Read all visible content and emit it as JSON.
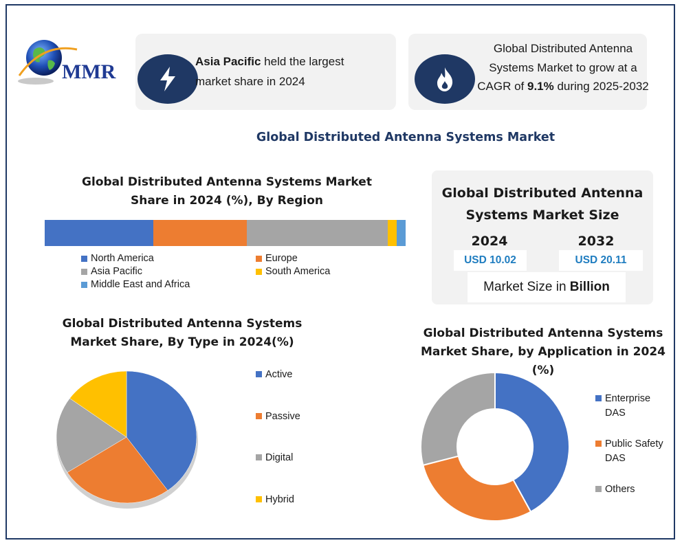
{
  "logo": {
    "text": "MMR"
  },
  "fact1": {
    "bold": "Asia Pacific",
    "rest_line1": " held the largest",
    "line2": "market share in 2024"
  },
  "fact2": {
    "line1": "Global Distributed Antenna",
    "line2": "Systems Market to grow at a",
    "line3_a": "CAGR of ",
    "line3_bold": "9.1%",
    "line3_b": " during 2025-2032"
  },
  "main_title": "Global Distributed Antenna Systems Market",
  "market_size": {
    "title_line1": "Global Distributed Antenna",
    "title_line2": "Systems Market Size",
    "year_a": "2024",
    "value_a": "USD 10.02",
    "year_b": "2032",
    "value_b": "USD 20.11",
    "unit_a": "Market Size in ",
    "unit_bold": "Billion"
  },
  "colors": {
    "blue": "#4472c4",
    "orange": "#ed7d31",
    "gray": "#a5a5a5",
    "yellow": "#ffc000",
    "lightblue": "#5b9bd5",
    "navy": "#1f3864"
  },
  "chart_data": [
    {
      "type": "bar",
      "title_line1": "Global Distributed Antenna Systems Market",
      "title_line2": "Share in 2024 (%), By Region",
      "stacked": true,
      "orientation": "horizontal",
      "series": [
        {
          "name": "North America",
          "value": 30,
          "color": "#4472c4"
        },
        {
          "name": "Europe",
          "value": 26,
          "color": "#ed7d31"
        },
        {
          "name": "Asia Pacific",
          "value": 39,
          "color": "#a5a5a5"
        },
        {
          "name": "South America",
          "value": 2.5,
          "color": "#ffc000"
        },
        {
          "name": "Middle East and Africa",
          "value": 2.5,
          "color": "#5b9bd5"
        }
      ],
      "legend": "bottom"
    },
    {
      "type": "pie",
      "title_line1": "Global Distributed Antenna Systems",
      "title_line2": "Market Share, By Type in 2024(%)",
      "slices": [
        {
          "name": "Active",
          "value": 40,
          "color": "#4472c4"
        },
        {
          "name": "Passive",
          "value": 26,
          "color": "#ed7d31"
        },
        {
          "name": "Digital",
          "value": 19,
          "color": "#a5a5a5"
        },
        {
          "name": "Hybrid",
          "value": 15,
          "color": "#ffc000"
        }
      ],
      "legend": "right"
    },
    {
      "type": "pie",
      "donut": true,
      "title_line1": "Global Distributed Antenna Systems",
      "title_line2": "Market Share, by Application in 2024",
      "title_line3": "(%)",
      "slices": [
        {
          "name": "Enterprise DAS",
          "label_line1": "Enterprise",
          "label_line2": "DAS",
          "value": 42,
          "color": "#4472c4"
        },
        {
          "name": "Public Safety DAS",
          "label_line1": "Public Safety",
          "label_line2": "DAS",
          "value": 29,
          "color": "#ed7d31"
        },
        {
          "name": "Others",
          "label_line1": "Others",
          "label_line2": "",
          "value": 29,
          "color": "#a5a5a5"
        }
      ],
      "legend": "right"
    }
  ]
}
